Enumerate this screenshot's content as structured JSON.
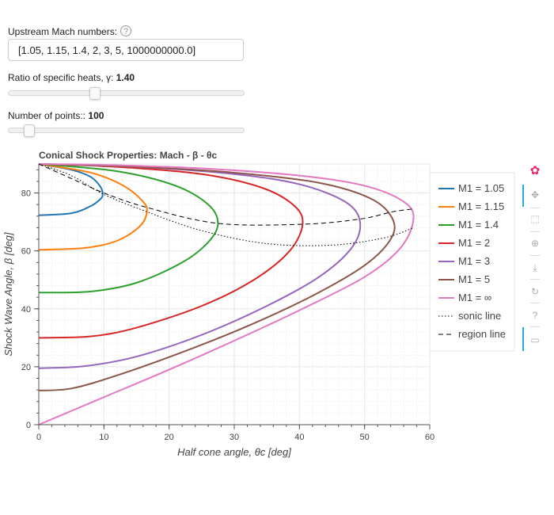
{
  "controls": {
    "mach_label": "Upstream Mach numbers:",
    "mach_value": "[1.05, 1.15, 1.4, 2, 3, 5, 1000000000.0]",
    "gamma_label": "Ratio of specific heats, γ:",
    "gamma_value": "1.40",
    "gamma_slider": {
      "min": 1.05,
      "max": 2.0,
      "value": 1.4
    },
    "points_label": "Number of points::",
    "points_value": "100",
    "points_slider": {
      "min": 10,
      "max": 1000,
      "value": 100
    },
    "help_glyph": "?"
  },
  "toolbar": [
    "bokeh-logo-icon",
    "pan-icon",
    "box-zoom-icon",
    "wheel-zoom-icon",
    "save-icon",
    "reset-icon",
    "help-icon",
    "hover-icon"
  ],
  "chart_data": {
    "type": "line",
    "title": "Conical Shock Properties: Mach - β - θc",
    "xlabel": "Half cone angle, θc [deg]",
    "ylabel": "Shock Wave Angle, β [deg]",
    "xlim": [
      0,
      60
    ],
    "ylim": [
      0,
      90
    ],
    "xticks": [
      0,
      10,
      20,
      30,
      40,
      50,
      60
    ],
    "yticks": [
      0,
      20,
      40,
      60,
      80
    ],
    "grid": true,
    "legend_position": "right",
    "series": [
      {
        "name": "M1 = 1.05",
        "color": "#1f77b4",
        "style": "solid",
        "x": [
          0,
          5,
          8,
          9.5,
          9.8,
          9.5,
          8,
          5,
          0
        ],
        "y": [
          72.3,
          73,
          75.5,
          78,
          79.5,
          82,
          85.5,
          88,
          90
        ]
      },
      {
        "name": "M1 = 1.15",
        "color": "#ff7f0e",
        "style": "solid",
        "x": [
          0,
          7,
          12,
          15.5,
          16.6,
          16.0,
          13,
          8,
          0
        ],
        "y": [
          60.4,
          61,
          63.5,
          68.5,
          73.5,
          77,
          82.5,
          87,
          90
        ]
      },
      {
        "name": "M1 = 1.4",
        "color": "#2ca02c",
        "style": "solid",
        "x": [
          0,
          8,
          15,
          22,
          26,
          27.5,
          26,
          21,
          12,
          0
        ],
        "y": [
          45.6,
          46,
          49,
          56,
          63,
          69.5,
          76,
          82.5,
          87.5,
          90
        ]
      },
      {
        "name": "M1 = 2",
        "color": "#d62728",
        "style": "solid",
        "x": [
          0,
          8,
          15,
          25,
          33,
          38.5,
          40.5,
          39,
          34,
          25,
          12,
          0
        ],
        "y": [
          30,
          30.5,
          33.5,
          41,
          50,
          60,
          69.5,
          76,
          82,
          86.5,
          89,
          90
        ]
      },
      {
        "name": "M1 = 3",
        "color": "#9467bd",
        "style": "solid",
        "x": [
          0,
          7,
          15,
          25,
          35,
          43,
          48,
          49.3,
          47,
          40,
          30,
          15,
          0
        ],
        "y": [
          19.5,
          20.2,
          23.5,
          31,
          41,
          51,
          61,
          70,
          77,
          83,
          86.5,
          89,
          90
        ]
      },
      {
        "name": "M1 = 5",
        "color": "#8c564b",
        "style": "solid",
        "x": [
          0,
          5,
          12,
          22,
          32,
          42,
          50,
          54,
          54.3,
          51,
          43,
          30,
          15,
          0
        ],
        "y": [
          11.8,
          12.5,
          17,
          25,
          34,
          44.5,
          55,
          64,
          71,
          78,
          83.5,
          87,
          89,
          90
        ]
      },
      {
        "name": "M1 = ∞",
        "color": "#e377c2",
        "style": "solid",
        "x": [
          0,
          10,
          20,
          30,
          40,
          50,
          55.5,
          57.5,
          56,
          50,
          40,
          25,
          10,
          0
        ],
        "y": [
          0,
          9.5,
          19,
          29,
          39.5,
          51,
          61,
          71,
          77,
          82.5,
          86,
          88.5,
          89.7,
          90
        ]
      },
      {
        "name": "sonic line",
        "color": "#000000",
        "style": "dotted",
        "x": [
          0,
          5,
          10,
          16.6,
          25,
          35,
          45,
          53,
          57.5
        ],
        "y": [
          90,
          86,
          79.5,
          73.5,
          67,
          62.5,
          62,
          64.5,
          68
        ]
      },
      {
        "name": "region line",
        "color": "#000000",
        "style": "dashed",
        "x": [
          0,
          5,
          10,
          16.6,
          27.5,
          40.5,
          49.3,
          54.3,
          57.5
        ],
        "y": [
          90,
          85,
          80,
          75,
          69.5,
          69.2,
          71,
          73.5,
          74.5
        ]
      }
    ]
  }
}
